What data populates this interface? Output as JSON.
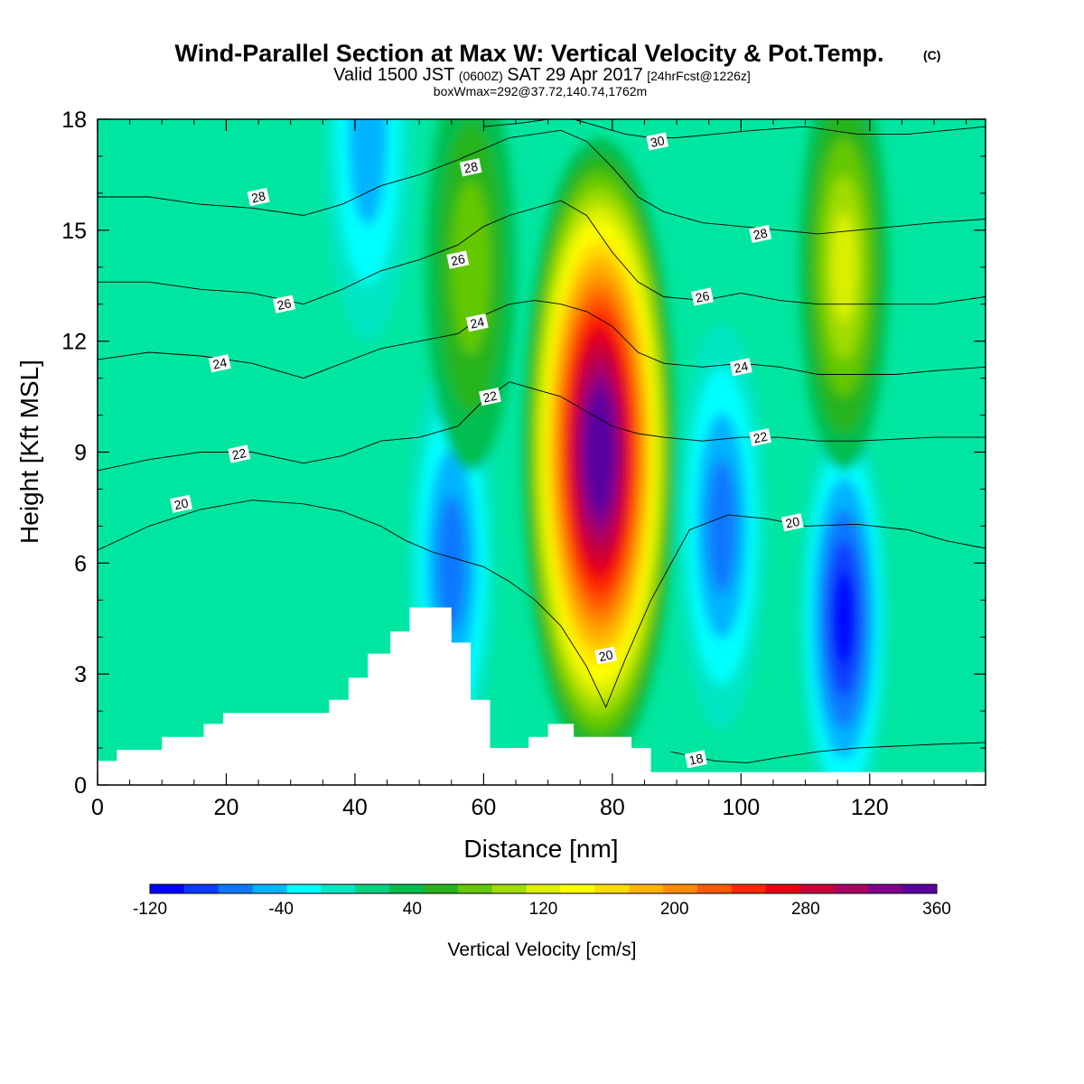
{
  "header": {
    "title": "Wind-Parallel Section at Max W: Vertical Velocity & Pot.Temp.",
    "copyright": "(C)",
    "valid_prefix": "Valid 1500 JST",
    "valid_zulu": "(0600Z)",
    "valid_date": "SAT 29 Apr 2017",
    "forecast": "[24hrFcst@1226z]",
    "boxwmax": "boxWmax=292@37.72,140.74,1762m"
  },
  "chart_data": {
    "type": "heatmap",
    "xlabel": "Distance [nm]",
    "ylabel": "Height [Kft MSL]",
    "xlim": [
      0,
      138
    ],
    "ylim": [
      0,
      18
    ],
    "xticks": [
      "0",
      "20",
      "40",
      "60",
      "80",
      "100",
      "120"
    ],
    "yticks": [
      "0",
      "3",
      "6",
      "9",
      "12",
      "15",
      "18"
    ],
    "colorbar": {
      "label": "Vertical Velocity [cm/s]",
      "ticks": [
        "-120",
        "-40",
        "40",
        "120",
        "200",
        "280",
        "360"
      ],
      "min": -120,
      "max": 360,
      "step": 20,
      "colors": [
        "#0000ff",
        "#0a3cff",
        "#0a78ff",
        "#00b4ff",
        "#00ffff",
        "#00e6c3",
        "#00d282",
        "#00be50",
        "#28b41e",
        "#64c800",
        "#a0dc00",
        "#dcf000",
        "#ffff00",
        "#ffdc00",
        "#ffb400",
        "#ff8c00",
        "#ff5a00",
        "#ff2800",
        "#e60014",
        "#c8003c",
        "#aa0064",
        "#82008c",
        "#5a00a0"
      ]
    },
    "vertical_velocity_features": [
      {
        "name": "main updraft",
        "x": 78,
        "y": 9,
        "w_cm_s": 360
      },
      {
        "name": "downdraft",
        "x": 116,
        "y": 4.5,
        "w_cm_s": -120
      },
      {
        "name": "downdraft",
        "x": 97,
        "y": 7,
        "w_cm_s": -80
      },
      {
        "name": "downdraft",
        "x": 55,
        "y": 6,
        "w_cm_s": -80
      },
      {
        "name": "downdraft",
        "x": 42,
        "y": 17.5,
        "w_cm_s": -70
      },
      {
        "name": "updraft",
        "x": 116,
        "y": 14,
        "w_cm_s": 100
      },
      {
        "name": "updraft",
        "x": 58,
        "y": 14,
        "w_cm_s": 70
      }
    ],
    "terrain": {
      "x": [
        0,
        3,
        3,
        10,
        10,
        16.5,
        16.5,
        19.5,
        19.5,
        36,
        36,
        39,
        39,
        42,
        42,
        45.5,
        45.5,
        48.5,
        48.5,
        55,
        55,
        58,
        58,
        61,
        61,
        67,
        67,
        70,
        70,
        74,
        74,
        83,
        83,
        86,
        86,
        89,
        89,
        138
      ],
      "y": [
        0.65,
        0.65,
        0.95,
        0.95,
        1.3,
        1.3,
        1.65,
        1.65,
        1.95,
        1.95,
        2.3,
        2.3,
        2.9,
        2.9,
        3.55,
        3.55,
        4.15,
        4.15,
        4.8,
        4.8,
        3.85,
        3.85,
        2.3,
        2.3,
        1.0,
        1.0,
        1.3,
        1.3,
        1.65,
        1.65,
        1.3,
        1.3,
        1.0,
        1.0,
        0.35,
        0.35,
        0.35,
        0.35
      ]
    },
    "theta_contours": [
      {
        "label": "18",
        "x": [
          89,
          96,
          101,
          106,
          112,
          118,
          124,
          130,
          138
        ],
        "y": [
          0.9,
          0.65,
          0.6,
          0.75,
          0.9,
          1.0,
          1.05,
          1.1,
          1.15
        ],
        "labels_at": [
          [
            93,
            0.7
          ]
        ]
      },
      {
        "label": "20",
        "x": [
          0,
          8,
          16,
          24,
          32,
          38,
          44,
          48,
          52,
          56,
          60,
          64,
          68,
          72,
          76,
          79,
          82,
          86,
          92,
          98,
          104,
          110,
          118,
          126,
          132,
          138
        ],
        "y": [
          6.35,
          7.0,
          7.45,
          7.7,
          7.6,
          7.4,
          7.0,
          6.6,
          6.3,
          6.1,
          5.9,
          5.5,
          5.0,
          4.3,
          3.2,
          2.1,
          3.4,
          5.0,
          6.9,
          7.3,
          7.2,
          7.0,
          7.05,
          6.9,
          6.6,
          6.4
        ],
        "labels_at": [
          [
            13,
            7.6
          ],
          [
            79,
            3.5
          ],
          [
            108,
            7.1
          ]
        ]
      },
      {
        "label": "22",
        "x": [
          0,
          8,
          16,
          24,
          32,
          38,
          44,
          50,
          56,
          60,
          64,
          68,
          72,
          76,
          80,
          84,
          88,
          94,
          100,
          106,
          112,
          118,
          124,
          130,
          138
        ],
        "y": [
          8.5,
          8.8,
          9.0,
          9.0,
          8.7,
          8.9,
          9.3,
          9.4,
          9.7,
          10.4,
          10.9,
          10.7,
          10.5,
          10.1,
          9.7,
          9.5,
          9.4,
          9.3,
          9.4,
          9.4,
          9.3,
          9.3,
          9.35,
          9.4,
          9.4
        ],
        "labels_at": [
          [
            22,
            8.95
          ],
          [
            61,
            10.5
          ],
          [
            103,
            9.4
          ]
        ]
      },
      {
        "label": "24",
        "x": [
          0,
          8,
          16,
          24,
          32,
          38,
          44,
          50,
          56,
          60,
          64,
          68,
          72,
          76,
          80,
          84,
          88,
          94,
          100,
          106,
          112,
          118,
          124,
          130,
          138
        ],
        "y": [
          11.5,
          11.7,
          11.6,
          11.4,
          11.0,
          11.4,
          11.8,
          12.0,
          12.2,
          12.7,
          13.0,
          13.1,
          13.0,
          12.8,
          12.4,
          11.7,
          11.4,
          11.3,
          11.4,
          11.3,
          11.1,
          11.1,
          11.1,
          11.2,
          11.3
        ],
        "labels_at": [
          [
            19,
            11.4
          ],
          [
            59,
            12.5
          ],
          [
            100,
            11.3
          ]
        ]
      },
      {
        "label": "26",
        "x": [
          0,
          8,
          16,
          24,
          32,
          38,
          44,
          50,
          56,
          60,
          64,
          68,
          72,
          76,
          80,
          84,
          88,
          94,
          100,
          106,
          112,
          118,
          124,
          130,
          138
        ],
        "y": [
          13.6,
          13.6,
          13.4,
          13.3,
          13.0,
          13.4,
          13.9,
          14.2,
          14.6,
          15.1,
          15.4,
          15.6,
          15.8,
          15.4,
          14.4,
          13.6,
          13.2,
          13.1,
          13.3,
          13.1,
          13.0,
          13.0,
          13.0,
          13.0,
          13.2
        ],
        "labels_at": [
          [
            29,
            13.0
          ],
          [
            56,
            14.2
          ],
          [
            94,
            13.2
          ]
        ]
      },
      {
        "label": "28",
        "x": [
          0,
          8,
          16,
          24,
          32,
          38,
          44,
          50,
          56,
          60,
          64,
          68,
          72,
          76,
          80,
          84,
          88,
          94,
          100,
          106,
          112,
          118,
          124,
          130,
          138
        ],
        "y": [
          15.9,
          15.9,
          15.7,
          15.6,
          15.4,
          15.7,
          16.2,
          16.5,
          16.9,
          17.2,
          17.5,
          17.6,
          17.7,
          17.4,
          16.7,
          15.9,
          15.5,
          15.2,
          15.1,
          15.0,
          14.9,
          15.0,
          15.1,
          15.2,
          15.3
        ],
        "labels_at": [
          [
            25,
            15.9
          ],
          [
            58,
            16.7
          ],
          [
            103,
            14.9
          ]
        ]
      },
      {
        "label": "30",
        "x": [
          60,
          66,
          70,
          74,
          78,
          82,
          86,
          90,
          96,
          102,
          110,
          118,
          126,
          132,
          138
        ],
        "y": [
          17.8,
          17.9,
          18.0,
          18.0,
          17.8,
          17.6,
          17.5,
          17.5,
          17.6,
          17.7,
          17.8,
          17.6,
          17.6,
          17.7,
          17.8
        ],
        "labels_at": [
          [
            87,
            17.4
          ]
        ]
      }
    ]
  }
}
